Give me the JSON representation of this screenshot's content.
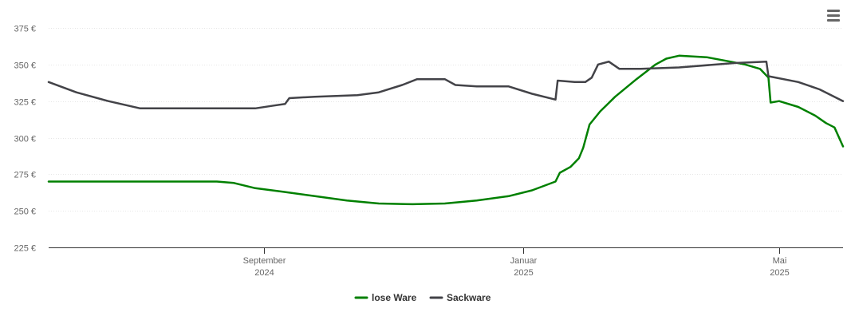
{
  "chart_data": {
    "type": "line",
    "title": "",
    "xlabel": "",
    "ylabel": "",
    "x_range": [
      "2024-05-23",
      "2025-05-31"
    ],
    "ylim": [
      225,
      375
    ],
    "y_ticks": [
      {
        "value": 225,
        "label": "225 €"
      },
      {
        "value": 250,
        "label": "250 €"
      },
      {
        "value": 275,
        "label": "275 €"
      },
      {
        "value": 300,
        "label": "300 €"
      },
      {
        "value": 325,
        "label": "325 €"
      },
      {
        "value": 350,
        "label": "350 €"
      },
      {
        "value": 375,
        "label": "375 €"
      }
    ],
    "x_ticks": [
      {
        "date": "2024-09-01",
        "month": "September",
        "year": "2024"
      },
      {
        "date": "2025-01-01",
        "month": "Januar",
        "year": "2025"
      },
      {
        "date": "2025-05-01",
        "month": "Mai",
        "year": "2025"
      }
    ],
    "grid": true,
    "legend_position": "bottom-center",
    "series": [
      {
        "name": "lose Ware",
        "color": "#008000",
        "points": [
          [
            "2024-05-23",
            270
          ],
          [
            "2024-06-15",
            270
          ],
          [
            "2024-07-15",
            270
          ],
          [
            "2024-08-10",
            270
          ],
          [
            "2024-08-18",
            269
          ],
          [
            "2024-08-28",
            265.5
          ],
          [
            "2024-09-10",
            263
          ],
          [
            "2024-09-25",
            260
          ],
          [
            "2024-10-10",
            257
          ],
          [
            "2024-10-25",
            255
          ],
          [
            "2024-11-10",
            254.5
          ],
          [
            "2024-11-25",
            255
          ],
          [
            "2024-12-10",
            257
          ],
          [
            "2024-12-25",
            260
          ],
          [
            "2025-01-05",
            264
          ],
          [
            "2025-01-16",
            270
          ],
          [
            "2025-01-18",
            276
          ],
          [
            "2025-01-23",
            280
          ],
          [
            "2025-01-27",
            286
          ],
          [
            "2025-01-29",
            293
          ],
          [
            "2025-02-01",
            309
          ],
          [
            "2025-02-06",
            318
          ],
          [
            "2025-02-13",
            328
          ],
          [
            "2025-02-23",
            340
          ],
          [
            "2025-03-04",
            350
          ],
          [
            "2025-03-09",
            354
          ],
          [
            "2025-03-15",
            356
          ],
          [
            "2025-03-28",
            355
          ],
          [
            "2025-04-08",
            352
          ],
          [
            "2025-04-15",
            350
          ],
          [
            "2025-04-22",
            347
          ],
          [
            "2025-04-26",
            341
          ],
          [
            "2025-04-27",
            324
          ],
          [
            "2025-05-01",
            325
          ],
          [
            "2025-05-10",
            321
          ],
          [
            "2025-05-18",
            315
          ],
          [
            "2025-05-23",
            310
          ],
          [
            "2025-05-27",
            307
          ],
          [
            "2025-05-31",
            294
          ]
        ]
      },
      {
        "name": "Sackware",
        "color": "#434348",
        "points": [
          [
            "2024-05-23",
            338
          ],
          [
            "2024-06-05",
            331
          ],
          [
            "2024-06-20",
            325
          ],
          [
            "2024-07-05",
            320
          ],
          [
            "2024-08-15",
            320
          ],
          [
            "2024-08-28",
            320
          ],
          [
            "2024-09-06",
            322
          ],
          [
            "2024-09-11",
            323
          ],
          [
            "2024-09-13",
            327
          ],
          [
            "2024-09-25",
            328
          ],
          [
            "2024-10-15",
            329
          ],
          [
            "2024-10-25",
            331
          ],
          [
            "2024-11-05",
            336
          ],
          [
            "2024-11-12",
            340
          ],
          [
            "2024-11-25",
            340
          ],
          [
            "2024-11-30",
            336
          ],
          [
            "2024-12-10",
            335
          ],
          [
            "2024-12-25",
            335
          ],
          [
            "2025-01-05",
            330
          ],
          [
            "2025-01-16",
            326
          ],
          [
            "2025-01-17",
            339
          ],
          [
            "2025-01-25",
            338
          ],
          [
            "2025-01-30",
            338
          ],
          [
            "2025-02-02",
            341
          ],
          [
            "2025-02-05",
            350
          ],
          [
            "2025-02-10",
            352
          ],
          [
            "2025-02-15",
            347
          ],
          [
            "2025-02-25",
            347
          ],
          [
            "2025-03-15",
            348
          ],
          [
            "2025-04-10",
            351
          ],
          [
            "2025-04-25",
            352
          ],
          [
            "2025-04-26",
            342
          ],
          [
            "2025-05-10",
            338
          ],
          [
            "2025-05-20",
            333
          ],
          [
            "2025-05-31",
            325
          ]
        ]
      }
    ]
  }
}
